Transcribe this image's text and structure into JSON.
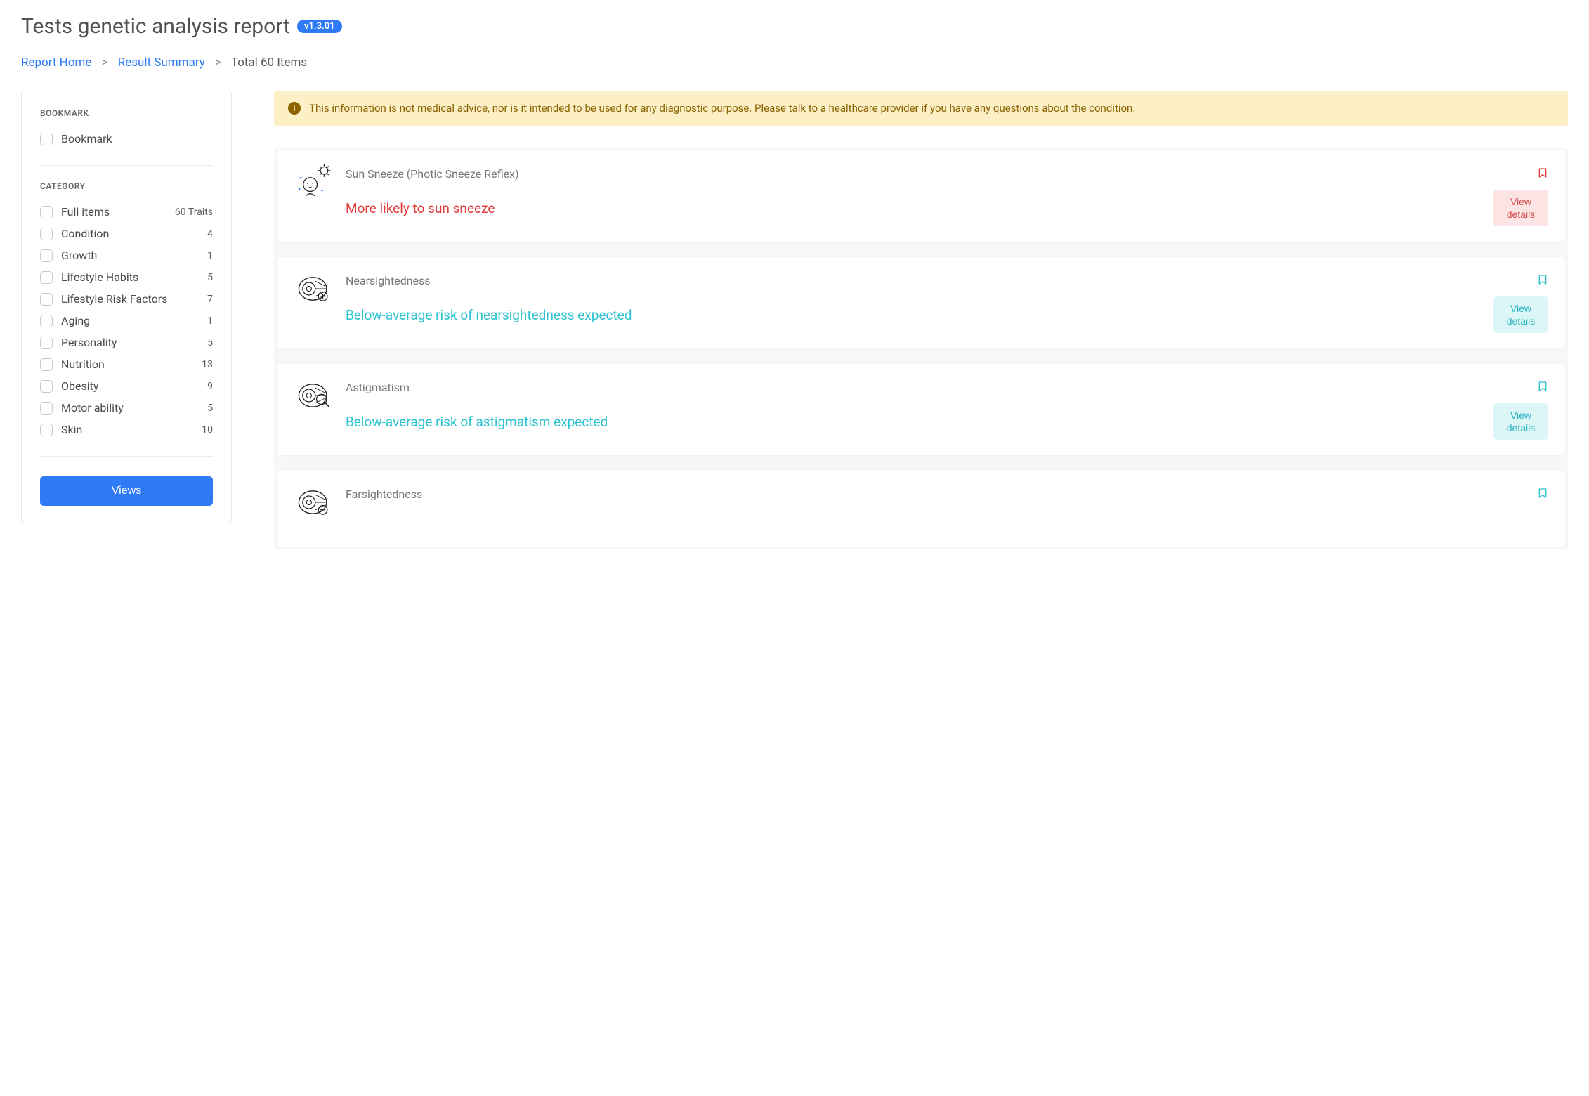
{
  "header": {
    "title": "Tests genetic analysis report",
    "version": "v1.3.01"
  },
  "breadcrumb": {
    "home": "Report Home",
    "summary": "Result Summary",
    "current": "Total 60 Items"
  },
  "sidebar": {
    "bookmark_section": "BOOKMARK",
    "bookmark_label": "Bookmark",
    "category_section": "CATEGORY",
    "categories": [
      {
        "label": "Full items",
        "count": "60 Traits"
      },
      {
        "label": "Condition",
        "count": "4"
      },
      {
        "label": "Growth",
        "count": "1"
      },
      {
        "label": "Lifestyle Habits",
        "count": "5"
      },
      {
        "label": "Lifestyle Risk Factors",
        "count": "7"
      },
      {
        "label": "Aging",
        "count": "1"
      },
      {
        "label": "Personality",
        "count": "5"
      },
      {
        "label": "Nutrition",
        "count": "13"
      },
      {
        "label": "Obesity",
        "count": "9"
      },
      {
        "label": "Motor ability",
        "count": "5"
      },
      {
        "label": "Skin",
        "count": "10"
      }
    ],
    "views_button": "Views"
  },
  "alert": {
    "text": "This information is not medical advice, nor is it intended to be used for any diagnostic purpose. Please talk to a healthcare provider if you have any questions about the condition."
  },
  "cards": [
    {
      "title": "Sun Sneeze (Photic Sneeze Reflex)",
      "result": "More likely to sun sneeze",
      "tone": "red",
      "view": "View details",
      "bookmark_color": "#e23b3b",
      "icon": "sun-sneeze"
    },
    {
      "title": "Nearsightedness",
      "result": "Below-average risk of nearsightedness expected",
      "tone": "teal",
      "view": "View details",
      "bookmark_color": "#2bc3cf",
      "icon": "eye-plus"
    },
    {
      "title": "Astigmatism",
      "result": "Below-average risk of astigmatism expected",
      "tone": "teal",
      "view": "View details",
      "bookmark_color": "#2bc3cf",
      "icon": "eye-magnify"
    },
    {
      "title": "Farsightedness",
      "result": "",
      "tone": "teal",
      "view": "",
      "bookmark_color": "#2bc3cf",
      "icon": "eye-minus"
    }
  ],
  "colors": {
    "primary": "#2f7bf5",
    "red": "#e23b3b",
    "teal": "#2bc3cf",
    "alert_bg": "#fdefc6",
    "alert_fg": "#8a6300"
  }
}
